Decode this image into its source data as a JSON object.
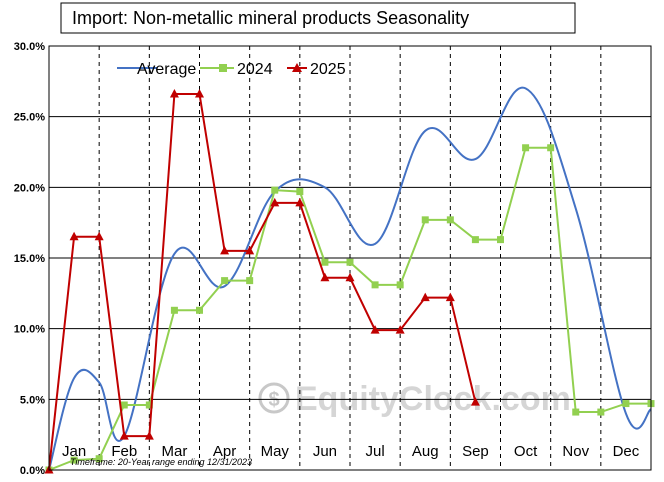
{
  "title": "Import: Non-metallic mineral products Seasonality",
  "footnote": "Timeframe: 20-Year range ending 12/31/2023",
  "watermark": "EquityClock.com",
  "colors": {
    "average": "#4472c4",
    "y2024": "#92d050",
    "y2025": "#c00000",
    "grid": "#000000",
    "watermark": "#c8c8c8"
  },
  "chart_data": {
    "type": "line",
    "title": "Import: Non-metallic mineral products Seasonality",
    "xlabel": "",
    "ylabel": "",
    "ylim": [
      0,
      30
    ],
    "y_tick_labels": [
      "0.0%",
      "5.0%",
      "10.0%",
      "15.0%",
      "20.0%",
      "25.0%",
      "30.0%"
    ],
    "y_ticks": [
      0,
      5,
      10,
      15,
      20,
      25,
      30
    ],
    "categories": [
      "Jan",
      "Feb",
      "Mar",
      "Apr",
      "May",
      "Jun",
      "Jul",
      "Aug",
      "Sep",
      "Oct",
      "Nov",
      "Dec"
    ],
    "grid": "horizontal and vertical",
    "legend_position": "top",
    "series": [
      {
        "name": "Average",
        "style": "smooth",
        "x": [
          0,
          0.5,
          1.0,
          1.5,
          2.5,
          3.5,
          4.5,
          5.5,
          6.5,
          7.5,
          8.5,
          9.5,
          10.5,
          11.5,
          12.0
        ],
        "values": [
          0.0,
          6.5,
          6.2,
          2.4,
          15.3,
          13.0,
          19.7,
          20.0,
          16.0,
          24.0,
          22.0,
          27.0,
          18.5,
          4.0,
          4.3
        ]
      },
      {
        "name": "2024",
        "style": "straight",
        "marker": "square",
        "x": [
          0,
          0.5,
          1.0,
          1.5,
          2.0,
          2.5,
          3.0,
          3.5,
          4.0,
          4.5,
          5.0,
          5.5,
          6.0,
          6.5,
          7.0,
          7.5,
          8.0,
          8.5,
          9.0,
          9.5,
          10.0,
          10.5,
          11.0,
          11.5,
          12.0
        ],
        "values": [
          0.0,
          0.7,
          0.8,
          4.6,
          4.6,
          11.3,
          11.3,
          13.4,
          13.4,
          19.8,
          19.7,
          14.7,
          14.7,
          13.1,
          13.1,
          17.7,
          17.7,
          16.3,
          16.3,
          22.8,
          22.8,
          4.1,
          4.1,
          4.7,
          4.7
        ]
      },
      {
        "name": "2025",
        "style": "straight",
        "marker": "triangle",
        "x": [
          0,
          0.5,
          1.0,
          1.5,
          2.0,
          2.5,
          3.0,
          3.5,
          4.0,
          4.5,
          5.0,
          5.5,
          6.0,
          6.5,
          7.0,
          7.5,
          8.0,
          8.5
        ],
        "values": [
          0.0,
          16.5,
          16.5,
          2.4,
          2.4,
          26.6,
          26.6,
          15.5,
          15.5,
          18.9,
          18.9,
          13.6,
          13.6,
          9.9,
          9.9,
          12.2,
          12.2,
          4.8
        ]
      }
    ]
  }
}
